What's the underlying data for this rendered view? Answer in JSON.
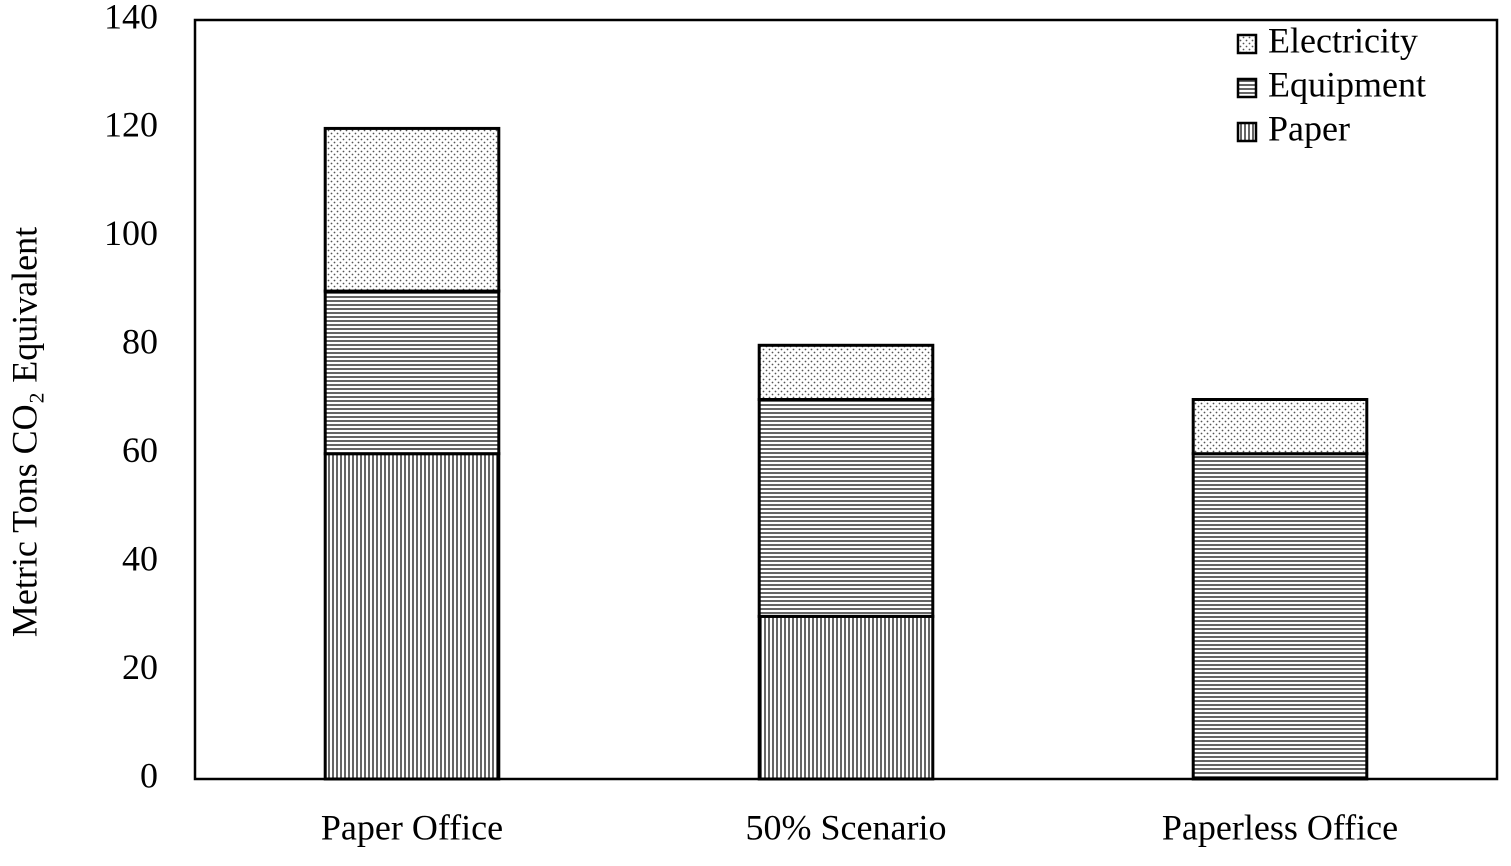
{
  "chart_data": {
    "type": "stacked_bar",
    "y_label": "Metric Tons CO₂ Equivalent",
    "categories": [
      "Paper Office",
      "50% Scenario",
      "Paperless Office"
    ],
    "series": [
      {
        "name": "Electricity",
        "color": "#000000",
        "pattern": "dots",
        "values": [
          30,
          10,
          10
        ]
      },
      {
        "name": "Equipment",
        "color": "#000000",
        "pattern": "horizontal",
        "values": [
          30,
          40,
          60
        ]
      },
      {
        "name": "Paper",
        "color": "#000000",
        "pattern": "vertical",
        "values": [
          60,
          30,
          0
        ]
      }
    ],
    "ylim": [
      0,
      140
    ],
    "yticks": [
      0,
      20,
      40,
      60,
      80,
      100,
      120,
      140
    ],
    "grid": false,
    "legend": "upper right"
  }
}
